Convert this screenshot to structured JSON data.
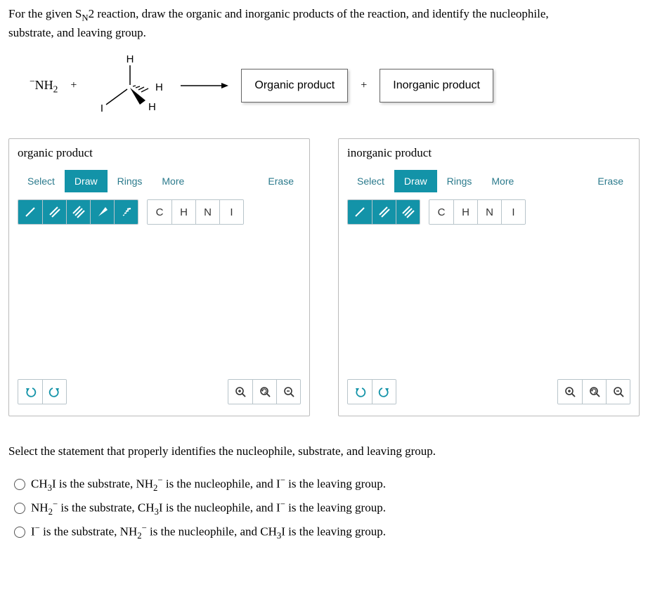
{
  "question": {
    "line1_pre": "For the given S",
    "line1_sub": "N",
    "line1_post": "2 reaction, draw the organic and inorganic products of the reaction, and identify the nucleophile,",
    "line2": "substrate, and leaving group."
  },
  "reaction": {
    "reagent1_html": "<span class='supminus'>−</span>NH<span class='sub'>2</span>",
    "plus": "+",
    "organic_box": "Organic product",
    "inorganic_box": "Inorganic product",
    "structure": {
      "top_H": "H",
      "right_H": "H",
      "bottomright_H": "H",
      "left_I": "I"
    }
  },
  "panels": {
    "organic": {
      "title": "organic product",
      "tabs": [
        "Select",
        "Draw",
        "Rings",
        "More"
      ],
      "active_tab": 1,
      "erase": "Erase",
      "elements": [
        "C",
        "H",
        "N",
        "I"
      ],
      "has_wedge_tools": true
    },
    "inorganic": {
      "title": "inorganic product",
      "tabs": [
        "Select",
        "Draw",
        "Rings",
        "More"
      ],
      "active_tab": 1,
      "erase": "Erase",
      "elements": [
        "C",
        "H",
        "N",
        "I"
      ],
      "has_wedge_tools": false
    }
  },
  "statement": "Select the statement that properly identifies the nucleophile, substrate, and leaving group.",
  "options": [
    "CH<span class='sub'>3</span>I is the substrate, NH<span class='sub'>2</span><span class='supminus'>−</span> is the nucleophile, and I<span class='supminus'>−</span> is the leaving group.",
    "NH<span class='sub'>2</span><span class='supminus'>−</span> is the substrate, CH<span class='sub'>3</span>I is the nucleophile, and I<span class='supminus'>−</span> is the leaving group.",
    "I<span class='supminus'>−</span> is the substrate, NH<span class='sub'>2</span><span class='supminus'>−</span> is the nucleophile, and CH<span class='sub'>3</span>I is the leaving group."
  ],
  "colors": {
    "accent": "#1393a8",
    "border": "#b8c4ca"
  }
}
